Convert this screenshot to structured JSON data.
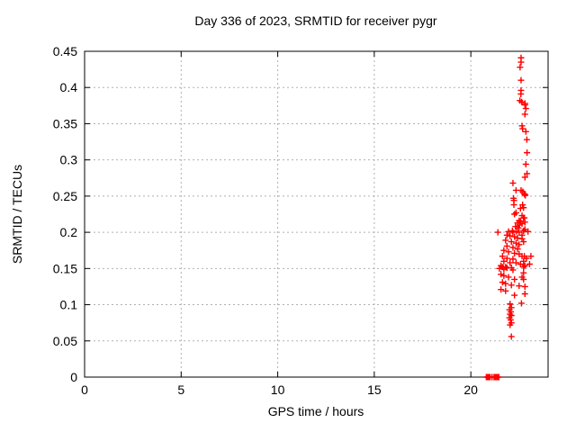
{
  "chart_data": {
    "type": "scatter",
    "title": "Day 336 of 2023, SRMTID for receiver pygr",
    "xlabel": "GPS time / hours",
    "ylabel": "SRMTID / TECUs",
    "xlim": [
      0,
      24
    ],
    "ylim": [
      0,
      0.45
    ],
    "xticks": {
      "values": [
        0,
        5,
        10,
        15,
        20
      ],
      "labels": [
        "0",
        "5",
        "10",
        "15",
        "20"
      ]
    },
    "yticks": {
      "values": [
        0,
        0.05,
        0.1,
        0.15,
        0.2,
        0.25,
        0.3,
        0.35,
        0.4,
        0.45
      ],
      "labels": [
        "0",
        "0.05",
        "0.1",
        "0.15",
        "0.2",
        "0.25",
        "0.3",
        "0.35",
        "0.4",
        "0.45"
      ]
    },
    "grid": true,
    "legend": "none",
    "marker": "plus",
    "marker_color": "#ff0000",
    "grid_color": "#b0b0b0",
    "axis_color": "#000000",
    "points": [
      [
        20.8,
        0
      ],
      [
        20.85,
        0
      ],
      [
        20.9,
        0
      ],
      [
        20.95,
        0
      ],
      [
        21.0,
        0
      ],
      [
        21.1,
        0
      ],
      [
        21.2,
        0
      ],
      [
        21.25,
        0
      ],
      [
        21.3,
        0
      ],
      [
        21.35,
        0
      ],
      [
        21.4,
        0
      ],
      [
        21.45,
        0
      ],
      [
        22.6,
        0.441
      ],
      [
        22.6,
        0.435
      ],
      [
        22.55,
        0.428
      ],
      [
        22.6,
        0.41
      ],
      [
        22.6,
        0.396
      ],
      [
        22.59,
        0.391
      ],
      [
        22.54,
        0.382
      ],
      [
        22.63,
        0.38
      ],
      [
        22.8,
        0.378
      ],
      [
        22.8,
        0.376
      ],
      [
        22.85,
        0.371
      ],
      [
        22.8,
        0.363
      ],
      [
        22.65,
        0.347
      ],
      [
        22.68,
        0.343
      ],
      [
        22.85,
        0.339
      ],
      [
        22.9,
        0.328
      ],
      [
        22.91,
        0.31
      ],
      [
        22.85,
        0.294
      ],
      [
        22.91,
        0.281
      ],
      [
        22.8,
        0.276
      ],
      [
        22.18,
        0.268
      ],
      [
        22.34,
        0.258
      ],
      [
        22.6,
        0.258
      ],
      [
        22.69,
        0.256
      ],
      [
        22.77,
        0.253
      ],
      [
        22.8,
        0.252
      ],
      [
        22.82,
        0.251
      ],
      [
        22.21,
        0.247
      ],
      [
        22.23,
        0.244
      ],
      [
        22.68,
        0.238
      ],
      [
        22.23,
        0.238
      ],
      [
        22.57,
        0.233
      ],
      [
        22.73,
        0.234
      ],
      [
        22.34,
        0.227
      ],
      [
        22.26,
        0.225
      ],
      [
        22.65,
        0.223
      ],
      [
        22.73,
        0.22
      ],
      [
        22.77,
        0.22
      ],
      [
        22.5,
        0.216
      ],
      [
        22.57,
        0.215
      ],
      [
        22.8,
        0.214
      ],
      [
        22.42,
        0.213
      ],
      [
        22.65,
        0.212
      ],
      [
        22.52,
        0.21
      ],
      [
        22.31,
        0.208
      ],
      [
        22.46,
        0.206
      ],
      [
        22.8,
        0.204
      ],
      [
        22.15,
        0.202
      ],
      [
        22.73,
        0.202
      ],
      [
        21.95,
        0.201
      ],
      [
        22.18,
        0.2
      ],
      [
        22.37,
        0.201
      ],
      [
        22.5,
        0.2
      ],
      [
        22.96,
        0.201
      ],
      [
        21.4,
        0.2
      ],
      [
        21.87,
        0.196
      ],
      [
        22.65,
        0.196
      ],
      [
        22.03,
        0.195
      ],
      [
        22.26,
        0.194
      ],
      [
        22.42,
        0.192
      ],
      [
        22.65,
        0.191
      ],
      [
        21.8,
        0.189
      ],
      [
        22.1,
        0.187
      ],
      [
        22.73,
        0.187
      ],
      [
        22.34,
        0.185
      ],
      [
        22.5,
        0.183
      ],
      [
        21.87,
        0.181
      ],
      [
        22.18,
        0.179
      ],
      [
        22.42,
        0.177
      ],
      [
        21.71,
        0.175
      ],
      [
        21.95,
        0.173
      ],
      [
        22.26,
        0.171
      ],
      [
        22.5,
        0.17
      ],
      [
        21.64,
        0.167
      ],
      [
        21.87,
        0.164
      ],
      [
        22.18,
        0.163
      ],
      [
        22.65,
        0.167
      ],
      [
        22.88,
        0.164
      ],
      [
        23.11,
        0.167
      ],
      [
        22.77,
        0.167
      ],
      [
        21.71,
        0.16
      ],
      [
        22.03,
        0.158
      ],
      [
        22.34,
        0.158
      ],
      [
        22.57,
        0.156
      ],
      [
        22.8,
        0.154
      ],
      [
        23.04,
        0.156
      ],
      [
        22.73,
        0.16
      ],
      [
        21.56,
        0.154
      ],
      [
        21.8,
        0.152
      ],
      [
        22.1,
        0.151
      ],
      [
        21.48,
        0.15
      ],
      [
        21.71,
        0.149
      ],
      [
        21.64,
        0.152
      ],
      [
        21.87,
        0.151
      ],
      [
        22.18,
        0.148
      ],
      [
        22.73,
        0.152
      ],
      [
        21.56,
        0.142
      ],
      [
        22.73,
        0.144
      ],
      [
        21.71,
        0.14
      ],
      [
        21.95,
        0.138
      ],
      [
        22.26,
        0.135
      ],
      [
        22.65,
        0.138
      ],
      [
        22.73,
        0.135
      ],
      [
        21.64,
        0.131
      ],
      [
        21.8,
        0.129
      ],
      [
        22.1,
        0.127
      ],
      [
        22.5,
        0.126
      ],
      [
        22.8,
        0.125
      ],
      [
        21.56,
        0.121
      ],
      [
        21.8,
        0.119
      ],
      [
        22.26,
        0.113
      ],
      [
        22.8,
        0.115
      ],
      [
        22.62,
        0.102
      ],
      [
        22.03,
        0.101
      ],
      [
        22.1,
        0.096
      ],
      [
        22.0,
        0.093
      ],
      [
        22.07,
        0.09
      ],
      [
        22.03,
        0.087
      ],
      [
        22.1,
        0.085
      ],
      [
        22.0,
        0.082
      ],
      [
        22.06,
        0.079
      ],
      [
        22.1,
        0.075
      ],
      [
        22.03,
        0.072
      ],
      [
        22.1,
        0.056
      ]
    ]
  }
}
